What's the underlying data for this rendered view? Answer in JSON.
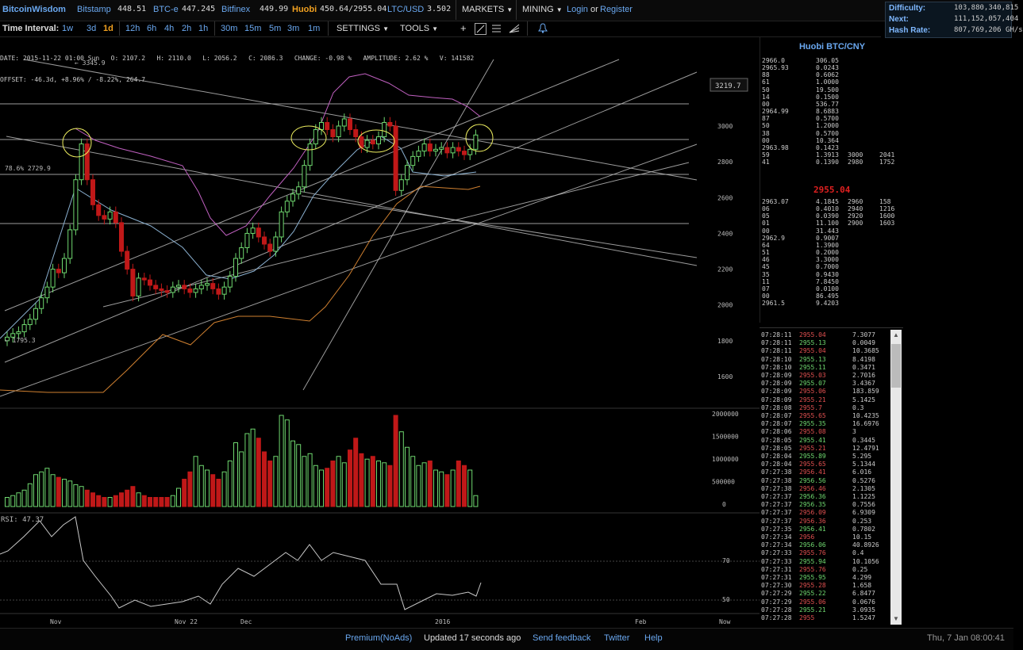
{
  "topbar": {
    "logo": "BitcoinWisdom",
    "exchanges": [
      {
        "name": "Bitstamp",
        "price": "448.51"
      },
      {
        "name": "BTC-e",
        "price": "447.245"
      },
      {
        "name": "Bitfinex",
        "price": "449.99"
      },
      {
        "name": "Huobi",
        "price": "450.64/2955.04"
      },
      {
        "name": "LTC/USD",
        "price": "3.502"
      }
    ],
    "markets_label": "MARKETS",
    "mining_label": "MINING",
    "login": "Login",
    "or": "or",
    "register": "Register"
  },
  "difficulty": {
    "difficulty_label": "Difficulty:",
    "difficulty_value": "103,880,340,815",
    "next_label": "Next:",
    "next_value": "111,152,057,404",
    "hashrate_label": "Hash Rate:",
    "hashrate_value": "807,769,206 GH/s"
  },
  "toolbar": {
    "time_interval_label": "Time Interval:",
    "intervals": [
      "1w",
      "3d",
      "1d",
      "12h",
      "6h",
      "4h",
      "2h",
      "1h",
      "30m",
      "15m",
      "5m",
      "3m",
      "1m"
    ],
    "active_interval": "1d",
    "settings_label": "SETTINGS",
    "tools_label": "TOOLS"
  },
  "info": {
    "line1": "DATE: 2015-11-22 01:00 Sun   O: 2107.2   H: 2110.0   L: 2056.2   C: 2086.3   CHANGE: -0.98 %   AMPLITUDE: 2.62 %   V: 141582",
    "line2": "OFFSET: -46.3d, +8.96% / -8.22%, 264.7"
  },
  "chart": {
    "price_ticks": [
      "3000",
      "2800",
      "2600",
      "2400",
      "2200",
      "2000",
      "1800",
      "1600"
    ],
    "price_label_box": "3219.7",
    "high_annotation": "← 3345.9",
    "low_annotation": "← 1795.3",
    "fib_label": "78.6% 2729.9",
    "volume_ticks": [
      "2000000",
      "1500000",
      "1000000",
      "500000",
      "0"
    ],
    "rsi_label": "RSI: 47.37",
    "rsi_ticks": [
      "70",
      "50"
    ],
    "time_ticks": [
      "Nov",
      "Nov 22",
      "Dec",
      "2016",
      "Feb",
      "Now"
    ],
    "colors": {
      "up": "#6fd86f",
      "down": "#c01818",
      "lines": "#b8b8b8",
      "boll": "#c060c0",
      "boll_mid": "#8ab0d0",
      "ma": "#d08030"
    }
  },
  "depth": {
    "title": "Huobi BTC/CNY",
    "asks": [
      {
        "price": "2966.0",
        "size": "306.05"
      },
      {
        "price": "2965.93",
        "size": "0.0243"
      },
      {
        "price": "88",
        "size": "0.6062"
      },
      {
        "price": "61",
        "size": "1.0000"
      },
      {
        "price": "50",
        "size": "19.500"
      },
      {
        "price": "14",
        "size": "0.1500"
      },
      {
        "price": "00",
        "size": "536.77"
      },
      {
        "price": "2964.99",
        "size": "8.6883"
      },
      {
        "price": "87",
        "size": "0.5700"
      },
      {
        "price": "50",
        "size": "1.2000"
      },
      {
        "price": "38",
        "size": "0.5700"
      },
      {
        "price": "00",
        "size": "10.364"
      },
      {
        "price": "2963.98",
        "size": "0.1423"
      },
      {
        "price": "59",
        "size": "1.3913",
        "c3": "3000",
        "c4": "2041"
      },
      {
        "price": "41",
        "size": "0.1390",
        "c3": "2980",
        "c4": "1752"
      }
    ],
    "last_price": "2955.04",
    "bids": [
      {
        "price": "2963.07",
        "size": "4.1845",
        "c3": "2960",
        "c4": "158"
      },
      {
        "price": "06",
        "size": "0.4010",
        "c3": "2940",
        "c4": "1216"
      },
      {
        "price": "05",
        "size": "0.0390",
        "c3": "2920",
        "c4": "1600"
      },
      {
        "price": "01",
        "size": "11.100",
        "c3": "2900",
        "c4": "1603"
      },
      {
        "price": "00",
        "size": "31.443"
      },
      {
        "price": "2962.9",
        "size": "0.9007"
      },
      {
        "price": "64",
        "size": "1.3900"
      },
      {
        "price": "51",
        "size": "0.2000"
      },
      {
        "price": "46",
        "size": "3.3000"
      },
      {
        "price": "45",
        "size": "0.7000"
      },
      {
        "price": "35",
        "size": "0.9430"
      },
      {
        "price": "11",
        "size": "7.8450"
      },
      {
        "price": "07",
        "size": "0.0100"
      },
      {
        "price": "00",
        "size": "86.495"
      },
      {
        "price": "2961.5",
        "size": "9.4203"
      }
    ]
  },
  "trades": [
    {
      "t": "07:28:11",
      "p": "2955.04",
      "s": "7.3077",
      "side": "down"
    },
    {
      "t": "07:28:11",
      "p": "2955.13",
      "s": "0.0049",
      "side": "up"
    },
    {
      "t": "07:28:11",
      "p": "2955.04",
      "s": "10.3685",
      "side": "down"
    },
    {
      "t": "07:28:10",
      "p": "2955.13",
      "s": "8.4198",
      "side": "up"
    },
    {
      "t": "07:28:10",
      "p": "2955.11",
      "s": "0.3471",
      "side": "up"
    },
    {
      "t": "07:28:09",
      "p": "2955.03",
      "s": "2.7016",
      "side": "down"
    },
    {
      "t": "07:28:09",
      "p": "2955.07",
      "s": "3.4367",
      "side": "up"
    },
    {
      "t": "07:28:09",
      "p": "2955.06",
      "s": "183.859",
      "side": "down"
    },
    {
      "t": "07:28:09",
      "p": "2955.21",
      "s": "5.1425",
      "side": "down"
    },
    {
      "t": "07:28:08",
      "p": "2955.7",
      "s": "0.3",
      "side": "down"
    },
    {
      "t": "07:28:07",
      "p": "2955.65",
      "s": "10.4235",
      "side": "down"
    },
    {
      "t": "07:28:07",
      "p": "2955.35",
      "s": "16.6976",
      "side": "up"
    },
    {
      "t": "07:28:06",
      "p": "2955.08",
      "s": "3",
      "side": "down"
    },
    {
      "t": "07:28:05",
      "p": "2955.41",
      "s": "0.3445",
      "side": "up"
    },
    {
      "t": "07:28:05",
      "p": "2955.21",
      "s": "12.4791",
      "side": "down"
    },
    {
      "t": "07:28:04",
      "p": "2955.89",
      "s": "5.295",
      "side": "up"
    },
    {
      "t": "07:28:04",
      "p": "2955.65",
      "s": "5.1344",
      "side": "down"
    },
    {
      "t": "07:27:38",
      "p": "2956.41",
      "s": "6.016",
      "side": "down"
    },
    {
      "t": "07:27:38",
      "p": "2956.56",
      "s": "0.5276",
      "side": "up"
    },
    {
      "t": "07:27:38",
      "p": "2956.46",
      "s": "2.1305",
      "side": "down"
    },
    {
      "t": "07:27:37",
      "p": "2956.36",
      "s": "1.1225",
      "side": "up"
    },
    {
      "t": "07:27:37",
      "p": "2956.35",
      "s": "0.7556",
      "side": "up"
    },
    {
      "t": "07:27:37",
      "p": "2956.09",
      "s": "6.9309",
      "side": "down"
    },
    {
      "t": "07:27:37",
      "p": "2956.36",
      "s": "0.253",
      "side": "down"
    },
    {
      "t": "07:27:35",
      "p": "2956.41",
      "s": "0.7802",
      "side": "up"
    },
    {
      "t": "07:27:34",
      "p": "2956",
      "s": "10.15",
      "side": "down"
    },
    {
      "t": "07:27:34",
      "p": "2956.06",
      "s": "40.8926",
      "side": "up"
    },
    {
      "t": "07:27:33",
      "p": "2955.76",
      "s": "0.4",
      "side": "down"
    },
    {
      "t": "07:27:33",
      "p": "2955.94",
      "s": "10.1056",
      "side": "up"
    },
    {
      "t": "07:27:31",
      "p": "2955.76",
      "s": "0.25",
      "side": "down"
    },
    {
      "t": "07:27:31",
      "p": "2955.95",
      "s": "4.299",
      "side": "up"
    },
    {
      "t": "07:27:30",
      "p": "2955.28",
      "s": "1.658",
      "side": "down"
    },
    {
      "t": "07:27:29",
      "p": "2955.22",
      "s": "6.8477",
      "side": "up"
    },
    {
      "t": "07:27:29",
      "p": "2955.06",
      "s": "0.0676",
      "side": "down"
    },
    {
      "t": "07:27:28",
      "p": "2955.21",
      "s": "3.0935",
      "side": "up"
    },
    {
      "t": "07:27:28",
      "p": "2955",
      "s": "1.5247",
      "side": "down"
    }
  ],
  "bottombar": {
    "premium": "Premium(NoAds)",
    "updated": "Updated 17 seconds ago",
    "feedback": "Send feedback",
    "twitter": "Twitter",
    "help": "Help",
    "datetime": "Thu, 7 Jan 08:00:41"
  }
}
